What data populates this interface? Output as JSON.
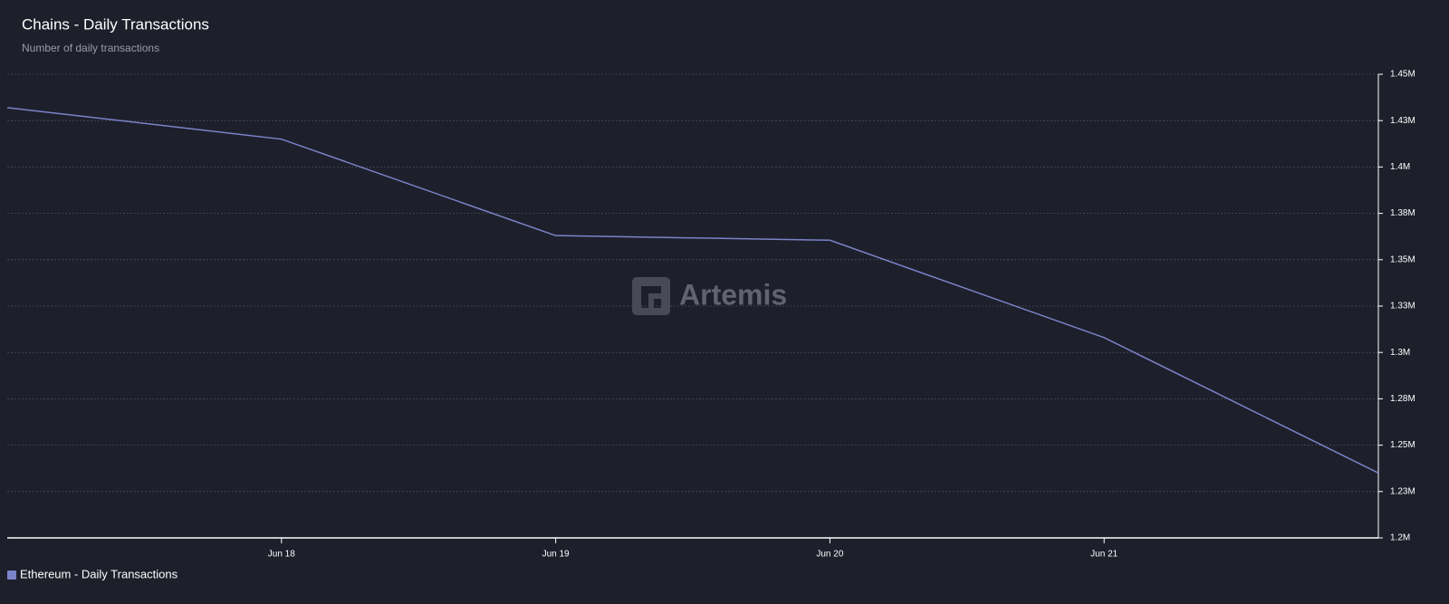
{
  "chart_data": {
    "type": "line",
    "title": "Chains - Daily Transactions",
    "subtitle": "Number of daily transactions",
    "watermark": "Artemis",
    "categories": [
      null,
      "Jun 18",
      "Jun 19",
      "Jun 20",
      "Jun 21",
      null
    ],
    "series": [
      {
        "name": "Ethereum - Daily Transactions",
        "color": "#7b83c9",
        "values": [
          1432000,
          1415000,
          1363000,
          1360500,
          1308000,
          1235000
        ]
      }
    ],
    "ylim": [
      1200000,
      1450000
    ],
    "yticks": [
      {
        "value": 1200000,
        "label": "1.2M"
      },
      {
        "value": 1225000,
        "label": "1.23M"
      },
      {
        "value": 1250000,
        "label": "1.25M"
      },
      {
        "value": 1275000,
        "label": "1.28M"
      },
      {
        "value": 1300000,
        "label": "1.3M"
      },
      {
        "value": 1325000,
        "label": "1.33M"
      },
      {
        "value": 1350000,
        "label": "1.35M"
      },
      {
        "value": 1375000,
        "label": "1.38M"
      },
      {
        "value": 1400000,
        "label": "1.4M"
      },
      {
        "value": 1425000,
        "label": "1.43M"
      },
      {
        "value": 1450000,
        "label": "1.45M"
      }
    ],
    "grid": true,
    "legend": "bottom-left"
  }
}
